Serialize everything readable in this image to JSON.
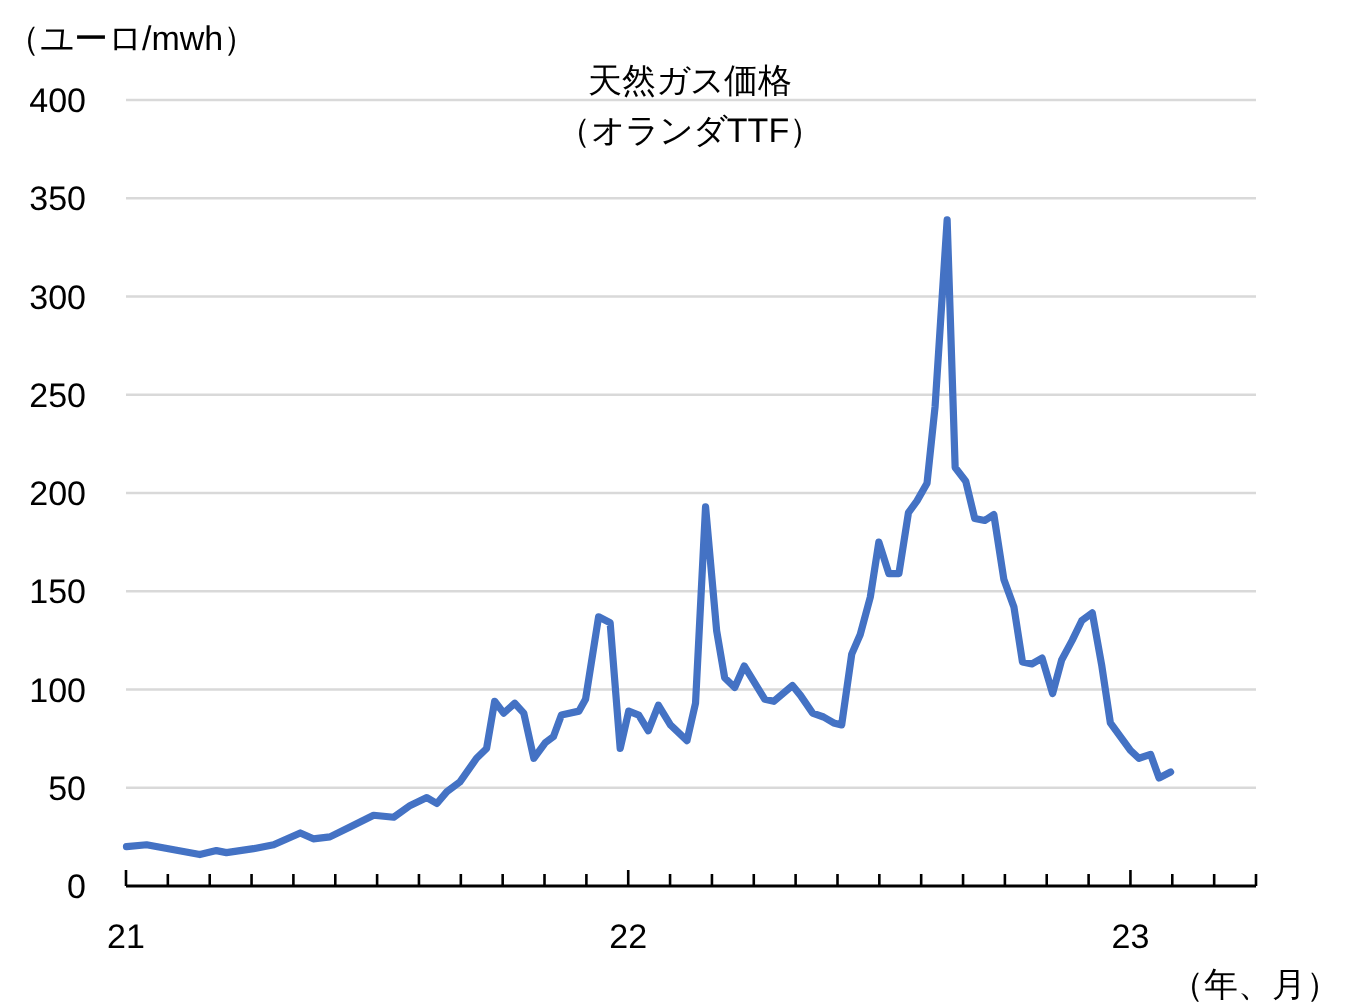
{
  "chart_data": {
    "type": "line",
    "title": "天然ガス価格",
    "subtitle": "（オランダTTF）",
    "ylabel": "（ユーロ/mwh）",
    "xlabel": "（年、月）",
    "series": [
      {
        "color": "#4472c4",
        "x": [
          2021.001,
          2021.041,
          2021.147,
          2021.18,
          2021.2,
          2021.254,
          2021.294,
          2021.347,
          2021.373,
          2021.406,
          2021.446,
          2021.493,
          2021.533,
          2021.566,
          2021.599,
          2021.619,
          2021.639,
          2021.665,
          2021.698,
          2021.718,
          2021.734,
          2021.752,
          2021.774,
          2021.792,
          2021.812,
          2021.835,
          2021.851,
          2021.867,
          2021.902,
          2021.915,
          2021.941,
          2021.964,
          2021.984,
          2022.001,
          2022.021,
          2022.04,
          2022.06,
          2022.084,
          2022.117,
          2022.134,
          2022.154,
          2022.176,
          2022.192,
          2022.212,
          2022.231,
          2022.272,
          2022.29,
          2022.327,
          2022.343,
          2022.367,
          2022.389,
          2022.409,
          2022.425,
          2022.445,
          2022.462,
          2022.482,
          2022.499,
          2022.519,
          2022.539,
          2022.558,
          2022.575,
          2022.595,
          2022.611,
          2022.635,
          2022.651,
          2022.672,
          2022.69,
          2022.71,
          2022.728,
          2022.748,
          2022.768,
          2022.785,
          2022.804,
          2022.824,
          2022.845,
          2022.863,
          2022.884,
          2022.903,
          2022.924,
          2022.943,
          2022.96,
          2022.98,
          2023.0,
          2023.017,
          2023.04,
          2023.057,
          2023.08
        ],
        "values": [
          20,
          21,
          16,
          18,
          17,
          19,
          21,
          27,
          24,
          25,
          30,
          36,
          35,
          41,
          45,
          42,
          48,
          53,
          65,
          70,
          94,
          88,
          93,
          88,
          65,
          73,
          76,
          87,
          89,
          95,
          137,
          134,
          70,
          89,
          87,
          79,
          92,
          82,
          74,
          93,
          193,
          130,
          106,
          101,
          112,
          95,
          94,
          102,
          97,
          88,
          86,
          83,
          82,
          118,
          128,
          147,
          175,
          159,
          159,
          190,
          196,
          205,
          244,
          339,
          213,
          206,
          187,
          186,
          189,
          156,
          142,
          114,
          113,
          116,
          98,
          115,
          125,
          135,
          139,
          112,
          83,
          76,
          69,
          65,
          67,
          55,
          58
        ]
      }
    ],
    "xlim": [
      2021,
      2023.25
    ],
    "xticks": [
      {
        "value": 2021,
        "label": "21"
      },
      {
        "value": 2021.0833,
        "label": null
      },
      {
        "value": 2021.1667,
        "label": null
      },
      {
        "value": 2021.25,
        "label": null
      },
      {
        "value": 2021.3333,
        "label": null
      },
      {
        "value": 2021.4167,
        "label": null
      },
      {
        "value": 2021.5,
        "label": null
      },
      {
        "value": 2021.5833,
        "label": null
      },
      {
        "value": 2021.6667,
        "label": null
      },
      {
        "value": 2021.75,
        "label": null
      },
      {
        "value": 2021.8333,
        "label": null
      },
      {
        "value": 2021.9167,
        "label": null
      },
      {
        "value": 2022,
        "label": "22"
      },
      {
        "value": 2022.0833,
        "label": null
      },
      {
        "value": 2022.1667,
        "label": null
      },
      {
        "value": 2022.25,
        "label": null
      },
      {
        "value": 2022.3333,
        "label": null
      },
      {
        "value": 2022.4167,
        "label": null
      },
      {
        "value": 2022.5,
        "label": null
      },
      {
        "value": 2022.5833,
        "label": null
      },
      {
        "value": 2022.6667,
        "label": null
      },
      {
        "value": 2022.75,
        "label": null
      },
      {
        "value": 2022.8333,
        "label": null
      },
      {
        "value": 2022.9167,
        "label": null
      },
      {
        "value": 2023,
        "label": "23"
      },
      {
        "value": 2023.0833,
        "label": null
      },
      {
        "value": 2023.1667,
        "label": null
      },
      {
        "value": 2023.25,
        "label": null
      }
    ],
    "ylim": [
      0,
      400
    ],
    "yticks": [
      0,
      50,
      100,
      150,
      200,
      250,
      300,
      350,
      400
    ],
    "grid": "y",
    "marker": "none",
    "line_style": "solid"
  }
}
